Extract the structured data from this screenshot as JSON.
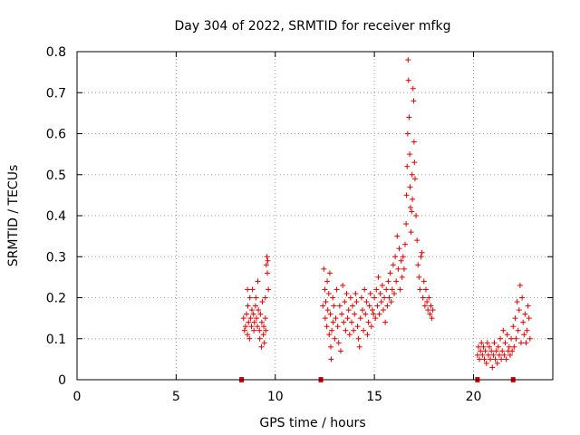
{
  "chart_data": {
    "type": "scatter",
    "title": "Day 304 of 2022, SRMTID for receiver mfkg",
    "xlabel": "GPS time / hours",
    "ylabel": "SRMTID / TECUs",
    "xlim": [
      0,
      24
    ],
    "ylim": [
      0,
      0.8
    ],
    "xticks": [
      0,
      5,
      10,
      15,
      20
    ],
    "xtick_labels": [
      "0",
      "5",
      "10",
      "15",
      "20"
    ],
    "yticks": [
      0,
      0.1,
      0.2,
      0.3,
      0.4,
      0.5,
      0.6,
      0.7,
      0.8
    ],
    "ytick_labels": [
      "0",
      "0.1",
      "0.2",
      "0.3",
      "0.4",
      "0.5",
      "0.6",
      "0.7",
      "0.8"
    ],
    "grid": true,
    "marker": "+",
    "color": "#e00000",
    "gap_markers_x": [
      8.3,
      12.3,
      20.2,
      22.0
    ],
    "points": [
      [
        8.4,
        0.15
      ],
      [
        8.45,
        0.12
      ],
      [
        8.5,
        0.13
      ],
      [
        8.55,
        0.16
      ],
      [
        8.6,
        0.11
      ],
      [
        8.62,
        0.18
      ],
      [
        8.65,
        0.14
      ],
      [
        8.7,
        0.1
      ],
      [
        8.72,
        0.2
      ],
      [
        8.75,
        0.15
      ],
      [
        8.8,
        0.13
      ],
      [
        8.82,
        0.17
      ],
      [
        8.85,
        0.22
      ],
      [
        8.9,
        0.16
      ],
      [
        8.92,
        0.12
      ],
      [
        8.95,
        0.14
      ],
      [
        9.0,
        0.18
      ],
      [
        9.02,
        0.2
      ],
      [
        9.05,
        0.15
      ],
      [
        9.1,
        0.13
      ],
      [
        9.12,
        0.24
      ],
      [
        9.15,
        0.17
      ],
      [
        9.2,
        0.12
      ],
      [
        9.22,
        0.1
      ],
      [
        9.25,
        0.16
      ],
      [
        9.3,
        0.08
      ],
      [
        9.32,
        0.14
      ],
      [
        9.35,
        0.19
      ],
      [
        9.4,
        0.11
      ],
      [
        9.42,
        0.13
      ],
      [
        9.45,
        0.09
      ],
      [
        9.5,
        0.15
      ],
      [
        9.52,
        0.12
      ],
      [
        9.55,
        0.28
      ],
      [
        9.58,
        0.3
      ],
      [
        9.6,
        0.26
      ],
      [
        9.62,
        0.29
      ],
      [
        9.65,
        0.22
      ],
      [
        9.5,
        0.2
      ],
      [
        8.6,
        0.22
      ],
      [
        12.4,
        0.18
      ],
      [
        12.45,
        0.27
      ],
      [
        12.5,
        0.22
      ],
      [
        12.52,
        0.15
      ],
      [
        12.55,
        0.19
      ],
      [
        12.6,
        0.13
      ],
      [
        12.62,
        0.24
      ],
      [
        12.65,
        0.17
      ],
      [
        12.7,
        0.21
      ],
      [
        12.72,
        0.11
      ],
      [
        12.75,
        0.26
      ],
      [
        12.78,
        0.16
      ],
      [
        12.8,
        0.08
      ],
      [
        12.82,
        0.05
      ],
      [
        12.85,
        0.12
      ],
      [
        12.9,
        0.2
      ],
      [
        12.92,
        0.14
      ],
      [
        12.95,
        0.18
      ],
      [
        13.0,
        0.1
      ],
      [
        13.05,
        0.15
      ],
      [
        13.1,
        0.22
      ],
      [
        13.15,
        0.13
      ],
      [
        13.2,
        0.09
      ],
      [
        13.25,
        0.18
      ],
      [
        13.3,
        0.07
      ],
      [
        13.35,
        0.16
      ],
      [
        13.4,
        0.23
      ],
      [
        13.45,
        0.14
      ],
      [
        13.5,
        0.19
      ],
      [
        13.55,
        0.12
      ],
      [
        13.6,
        0.21
      ],
      [
        13.65,
        0.15
      ],
      [
        13.7,
        0.17
      ],
      [
        13.75,
        0.11
      ],
      [
        13.8,
        0.2
      ],
      [
        13.85,
        0.14
      ],
      [
        13.9,
        0.18
      ],
      [
        13.95,
        0.12
      ],
      [
        14.0,
        0.16
      ],
      [
        14.05,
        0.21
      ],
      [
        14.1,
        0.19
      ],
      [
        14.15,
        0.13
      ],
      [
        14.2,
        0.1
      ],
      [
        14.25,
        0.08
      ],
      [
        14.3,
        0.15
      ],
      [
        14.35,
        0.2
      ],
      [
        14.4,
        0.17
      ],
      [
        14.45,
        0.12
      ],
      [
        14.5,
        0.22
      ],
      [
        14.55,
        0.16
      ],
      [
        14.6,
        0.19
      ],
      [
        14.65,
        0.11
      ],
      [
        14.7,
        0.14
      ],
      [
        14.75,
        0.18
      ],
      [
        14.8,
        0.21
      ],
      [
        14.85,
        0.13
      ],
      [
        14.9,
        0.17
      ],
      [
        14.95,
        0.16
      ],
      [
        15.0,
        0.2
      ],
      [
        15.05,
        0.15
      ],
      [
        15.1,
        0.22
      ],
      [
        15.15,
        0.18
      ],
      [
        15.2,
        0.25
      ],
      [
        15.25,
        0.16
      ],
      [
        15.3,
        0.21
      ],
      [
        15.35,
        0.19
      ],
      [
        15.4,
        0.23
      ],
      [
        15.45,
        0.17
      ],
      [
        15.5,
        0.2
      ],
      [
        15.55,
        0.14
      ],
      [
        15.6,
        0.22
      ],
      [
        15.65,
        0.18
      ],
      [
        15.7,
        0.24
      ],
      [
        15.75,
        0.2
      ],
      [
        15.8,
        0.26
      ],
      [
        15.85,
        0.19
      ],
      [
        15.9,
        0.22
      ],
      [
        15.95,
        0.28
      ],
      [
        16.0,
        0.21
      ],
      [
        16.05,
        0.3
      ],
      [
        16.1,
        0.24
      ],
      [
        16.15,
        0.35
      ],
      [
        16.2,
        0.27
      ],
      [
        16.25,
        0.32
      ],
      [
        16.3,
        0.22
      ],
      [
        16.35,
        0.29
      ],
      [
        16.4,
        0.25
      ],
      [
        16.45,
        0.3
      ],
      [
        16.5,
        0.27
      ],
      [
        16.55,
        0.33
      ],
      [
        16.6,
        0.38
      ],
      [
        16.62,
        0.45
      ],
      [
        16.65,
        0.52
      ],
      [
        16.68,
        0.6
      ],
      [
        16.7,
        0.78
      ],
      [
        16.72,
        0.73
      ],
      [
        16.75,
        0.64
      ],
      [
        16.78,
        0.55
      ],
      [
        16.8,
        0.47
      ],
      [
        16.82,
        0.42
      ],
      [
        16.85,
        0.36
      ],
      [
        16.88,
        0.41
      ],
      [
        16.9,
        0.5
      ],
      [
        16.92,
        0.44
      ],
      [
        16.95,
        0.71
      ],
      [
        16.98,
        0.68
      ],
      [
        17.0,
        0.58
      ],
      [
        17.02,
        0.53
      ],
      [
        17.05,
        0.49
      ],
      [
        17.1,
        0.4
      ],
      [
        17.15,
        0.34
      ],
      [
        17.2,
        0.28
      ],
      [
        17.25,
        0.25
      ],
      [
        17.3,
        0.22
      ],
      [
        17.35,
        0.3
      ],
      [
        17.4,
        0.31
      ],
      [
        17.45,
        0.2
      ],
      [
        17.5,
        0.24
      ],
      [
        17.55,
        0.18
      ],
      [
        17.6,
        0.22
      ],
      [
        17.65,
        0.19
      ],
      [
        17.7,
        0.17
      ],
      [
        17.75,
        0.2
      ],
      [
        17.8,
        0.16
      ],
      [
        17.85,
        0.18
      ],
      [
        17.9,
        0.15
      ],
      [
        17.95,
        0.17
      ],
      [
        20.2,
        0.06
      ],
      [
        20.25,
        0.08
      ],
      [
        20.3,
        0.05
      ],
      [
        20.35,
        0.07
      ],
      [
        20.4,
        0.09
      ],
      [
        20.45,
        0.06
      ],
      [
        20.5,
        0.08
      ],
      [
        20.55,
        0.05
      ],
      [
        20.6,
        0.07
      ],
      [
        20.65,
        0.04
      ],
      [
        20.7,
        0.09
      ],
      [
        20.75,
        0.06
      ],
      [
        20.8,
        0.08
      ],
      [
        20.85,
        0.05
      ],
      [
        20.9,
        0.07
      ],
      [
        20.95,
        0.03
      ],
      [
        21.0,
        0.06
      ],
      [
        21.05,
        0.09
      ],
      [
        21.1,
        0.05
      ],
      [
        21.15,
        0.07
      ],
      [
        21.2,
        0.04
      ],
      [
        21.25,
        0.08
      ],
      [
        21.3,
        0.06
      ],
      [
        21.35,
        0.1
      ],
      [
        21.4,
        0.05
      ],
      [
        21.45,
        0.07
      ],
      [
        21.5,
        0.12
      ],
      [
        21.55,
        0.06
      ],
      [
        21.6,
        0.09
      ],
      [
        21.65,
        0.05
      ],
      [
        21.7,
        0.11
      ],
      [
        21.75,
        0.07
      ],
      [
        21.8,
        0.08
      ],
      [
        21.85,
        0.06
      ],
      [
        21.9,
        0.1
      ],
      [
        21.95,
        0.07
      ],
      [
        22.0,
        0.13
      ],
      [
        22.05,
        0.08
      ],
      [
        22.1,
        0.15
      ],
      [
        22.15,
        0.1
      ],
      [
        22.2,
        0.19
      ],
      [
        22.25,
        0.12
      ],
      [
        22.3,
        0.17
      ],
      [
        22.35,
        0.23
      ],
      [
        22.4,
        0.09
      ],
      [
        22.45,
        0.2
      ],
      [
        22.5,
        0.14
      ],
      [
        22.55,
        0.11
      ],
      [
        22.6,
        0.16
      ],
      [
        22.65,
        0.09
      ],
      [
        22.7,
        0.12
      ],
      [
        22.75,
        0.18
      ],
      [
        22.8,
        0.15
      ],
      [
        22.85,
        0.1
      ]
    ]
  }
}
